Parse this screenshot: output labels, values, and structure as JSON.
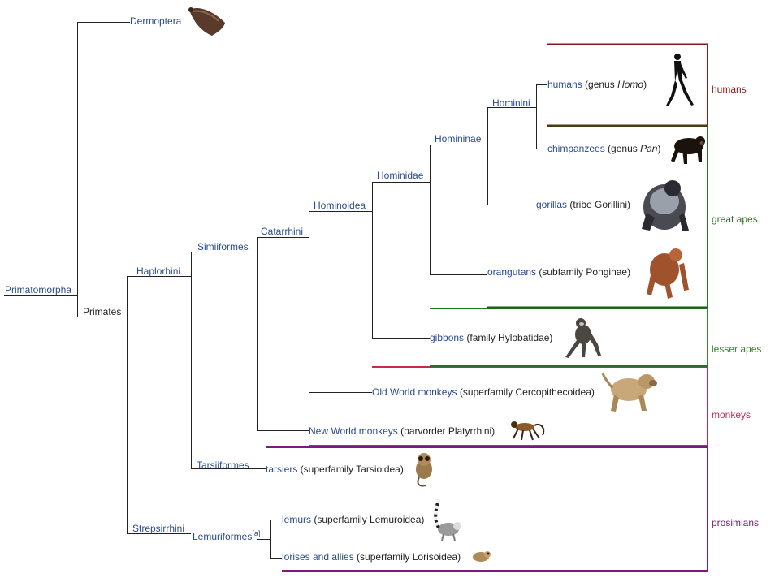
{
  "taxa": {
    "primatomorpha": "Primatomorpha",
    "dermoptera": "Dermoptera",
    "primates": "Primates",
    "haplorhini": "Haplorhini",
    "strepsirrhini": "Strepsirrhini",
    "simiiformes": "Simiiformes",
    "tarsiiformes": "Tarsiiformes",
    "catarrhini": "Catarrhini",
    "hominoidea": "Hominoidea",
    "hominidae": "Hominidae",
    "homininae": "Homininae",
    "hominini": "Hominini",
    "lemuriformes": "Lemuriformes",
    "lemuriformes_note": "[a]"
  },
  "leaves": {
    "humans": {
      "link": "humans",
      "text_a": " (genus ",
      "italic": "Homo",
      "text_b": ")"
    },
    "chimps": {
      "link": "chimpanzees",
      "text_a": " (genus ",
      "italic": "Pan",
      "text_b": ")"
    },
    "gorillas": {
      "link": "gorillas",
      "text": " (tribe Gorillini)"
    },
    "orangutans": {
      "link": "orangutans",
      "text": " (subfamily Ponginae)"
    },
    "gibbons": {
      "link": "gibbons",
      "text": " (family Hylobatidae)"
    },
    "oldworld": {
      "link": "Old World monkeys",
      "text": " (superfamily Cercopithecoidea)"
    },
    "newworld": {
      "link": "New World monkeys",
      "text": " (parvorder Platyrrhini)"
    },
    "tarsiers": {
      "link": "tarsiers",
      "text": " (superfamily Tarsioidea)"
    },
    "lemurs": {
      "link": "lemurs",
      "text": " (superfamily Lemuroidea)"
    },
    "lorises": {
      "link": "lorises and allies",
      "text": " (superfamily Lorisoidea)"
    }
  },
  "groups": {
    "humans": "humans",
    "great_apes": "great apes",
    "lesser_apes": "lesser apes",
    "monkeys": "monkeys",
    "prosimians": "prosimians"
  },
  "colors": {
    "tree_line": "#222222",
    "link": "#2a4b8d",
    "humans": "#8b1a1a",
    "great_apes": "#1e7a1e",
    "lesser_apes": "#2e8b2e",
    "monkeys": "#c8284a",
    "prosimians": "#7a1a7a"
  },
  "icons": [
    "colugo-icon",
    "human-silhouette-icon",
    "chimpanzee-icon",
    "gorilla-icon",
    "orangutan-icon",
    "gibbon-icon",
    "baboon-icon",
    "spider-monkey-icon",
    "tarsier-icon",
    "ring-tailed-lemur-icon",
    "loris-icon"
  ]
}
